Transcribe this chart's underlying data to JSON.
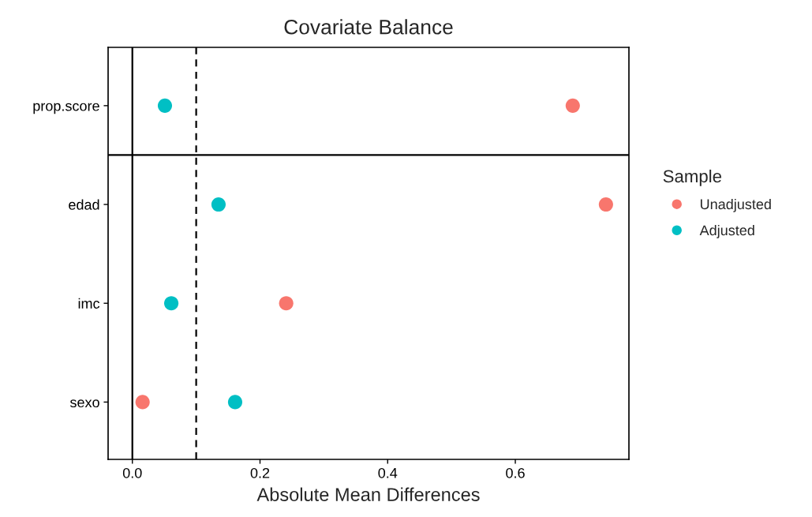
{
  "chart_data": {
    "type": "scatter",
    "title": "Covariate Balance",
    "xlabel": "Absolute Mean Differences",
    "legend_title": "Sample",
    "categories": [
      "prop.score",
      "edad",
      "imc",
      "sexo"
    ],
    "orientation": "horizontal",
    "series": [
      {
        "name": "Unadjusted",
        "color": "#f8766d",
        "values": [
          0.69,
          0.742,
          0.241,
          0.016
        ]
      },
      {
        "name": "Adjusted",
        "color": "#00bfc4",
        "values": [
          0.051,
          0.135,
          0.061,
          0.161
        ]
      }
    ],
    "xlim": [
      -0.038,
      0.778
    ],
    "xticks": [
      {
        "value": 0,
        "label": "0.0"
      },
      0.2,
      0.4,
      0.6
    ],
    "ref_lines": [
      {
        "axis": "x",
        "value": 0,
        "line_style": "solid",
        "color": "#000000"
      },
      {
        "axis": "x",
        "value": 0.1,
        "line_style": "dashed",
        "color": "#000000"
      }
    ],
    "grid": false,
    "legend": "right",
    "marker": "circle"
  }
}
